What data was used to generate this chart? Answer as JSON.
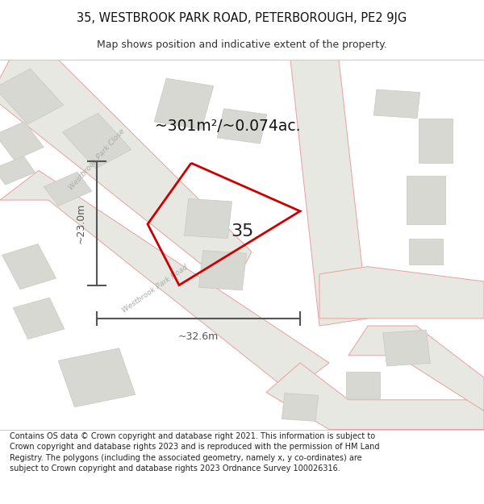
{
  "title_line1": "35, WESTBROOK PARK ROAD, PETERBOROUGH, PE2 9JG",
  "title_line2": "Map shows position and indicative extent of the property.",
  "area_text": "~301m²/~0.074ac.",
  "property_number": "35",
  "dim_vertical": "~23.0m",
  "dim_horizontal": "~32.6m",
  "footer_text": "Contains OS data © Crown copyright and database right 2021. This information is subject to Crown copyright and database rights 2023 and is reproduced with the permission of HM Land Registry. The polygons (including the associated geometry, namely x, y co-ordinates) are subject to Crown copyright and database rights 2023 Ordnance Survey 100026316.",
  "map_bg": "#f0f0eb",
  "road_fill": "#e8e8e2",
  "road_outline": "#e8a0a0",
  "building_fill": "#d8d8d2",
  "building_edge": "#c8c8c2",
  "dim_color": "#555555",
  "title_color": "#111111",
  "plot_color": "#cc0000",
  "label_road_color": "#aaaaaa"
}
